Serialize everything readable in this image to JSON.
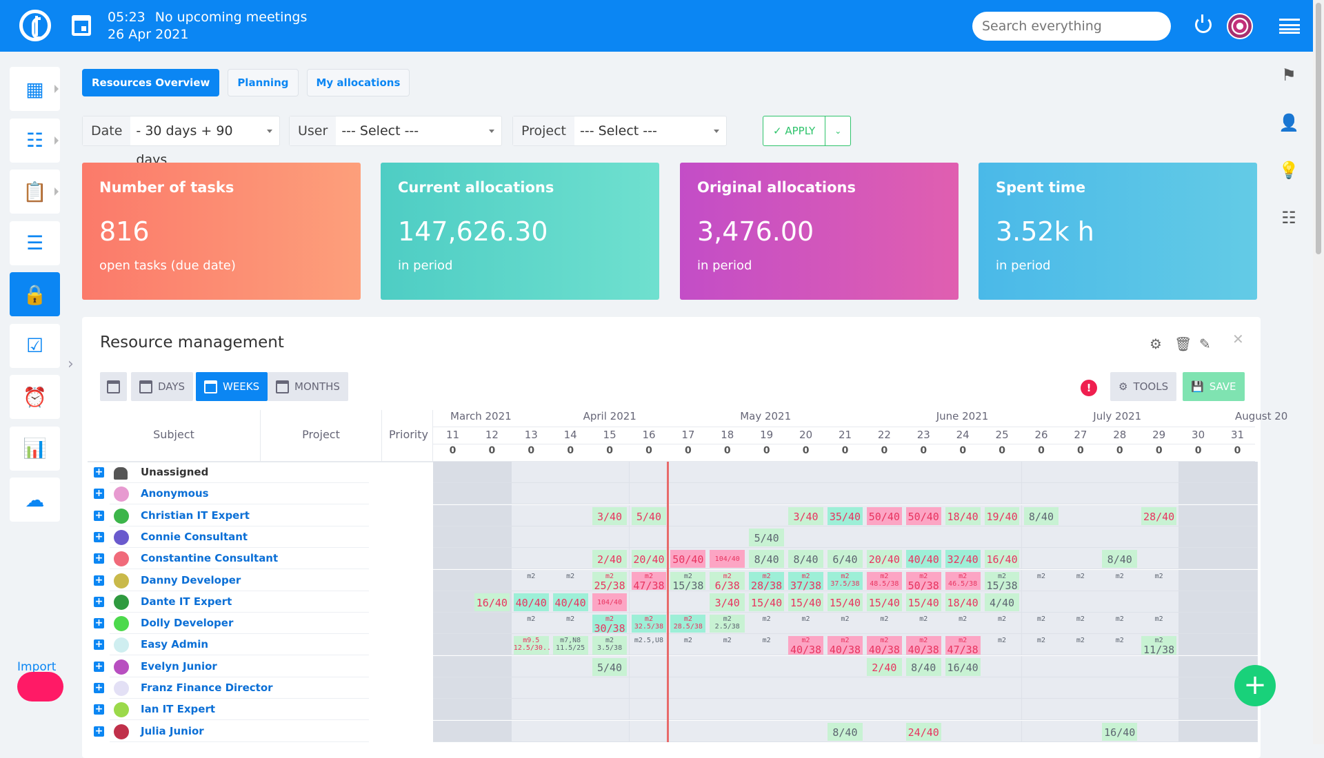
{
  "header": {
    "time": "05:23",
    "meetings": "No upcoming meetings",
    "date": "26 Apr 2021",
    "search_placeholder": "Search everything"
  },
  "sidebar": {
    "items": [
      {
        "icon": "dashboard-icon",
        "glyph": "▦"
      },
      {
        "icon": "tree-icon",
        "glyph": "☷"
      },
      {
        "icon": "clipboard-icon",
        "glyph": "📋"
      },
      {
        "icon": "checklist-icon",
        "glyph": "☰"
      },
      {
        "icon": "lock-icon",
        "glyph": "🔒",
        "active": true
      },
      {
        "icon": "task-check-icon",
        "glyph": "☑"
      },
      {
        "icon": "alarm-icon",
        "glyph": "⏰"
      },
      {
        "icon": "bar-chart-icon",
        "glyph": "📊"
      },
      {
        "icon": "cloud-icon",
        "glyph": "☁"
      }
    ],
    "import_label": "Import"
  },
  "right_sidebar": [
    {
      "icon": "flag-icon",
      "glyph": "⚑"
    },
    {
      "icon": "user-search-icon",
      "glyph": "👤"
    },
    {
      "icon": "lightbulb-icon",
      "glyph": "💡"
    },
    {
      "icon": "checklist-icon",
      "glyph": "☷"
    }
  ],
  "tabs": [
    {
      "label": "Resources Overview",
      "active": true
    },
    {
      "label": "Planning"
    },
    {
      "label": "My allocations"
    }
  ],
  "filters": {
    "date_label": "Date",
    "date_value": "- 30 days + 90 days",
    "user_label": "User",
    "user_value": "--- Select ---",
    "project_label": "Project",
    "project_value": "--- Select ---",
    "apply_label": "APPLY"
  },
  "cards": [
    {
      "title": "Number of tasks",
      "value": "816",
      "sub": "open tasks (due date)",
      "colors": [
        "#fb7a6a",
        "#fd9f7b"
      ]
    },
    {
      "title": "Current allocations",
      "value": "147,626.30",
      "sub": "in period",
      "colors": [
        "#4ecdc4",
        "#6fe0cf"
      ]
    },
    {
      "title": "Original allocations",
      "value": "3,476.00",
      "sub": "in period",
      "colors": [
        "#c34dc7",
        "#e05fb0"
      ]
    },
    {
      "title": "Spent time",
      "value": "3.52k h",
      "sub": "in period",
      "colors": [
        "#4ab9e8",
        "#63cbe6"
      ]
    }
  ],
  "panel": {
    "title": "Resource management",
    "days": "DAYS",
    "weeks": "WEEKS",
    "months": "MONTHS",
    "tools": "TOOLS",
    "save": "SAVE"
  },
  "table": {
    "headers": {
      "subject": "Subject",
      "project": "Project",
      "priority": "Priority"
    },
    "months": [
      {
        "label": "March 2021",
        "week": "11"
      },
      {
        "label": "April 2021",
        "week": "15"
      },
      {
        "label": "May 2021",
        "week": "19"
      },
      {
        "label": "June 2021",
        "week": "24"
      },
      {
        "label": "July 2021",
        "week": "28"
      },
      {
        "label": "August 20",
        "week": "31"
      }
    ],
    "weeks": [
      "11",
      "12",
      "13",
      "14",
      "15",
      "16",
      "17",
      "18",
      "19",
      "20",
      "21",
      "22",
      "23",
      "24",
      "25",
      "26",
      "27",
      "28",
      "29",
      "30",
      "31"
    ],
    "totals": [
      "0",
      "0",
      "0",
      "0",
      "0",
      "0",
      "0",
      "0",
      "0",
      "0",
      "0",
      "0",
      "0",
      "0",
      "0",
      "0",
      "0",
      "0",
      "0",
      "0",
      "0"
    ],
    "rows": [
      {
        "name": "Unassigned",
        "unassigned": true,
        "cells": []
      },
      {
        "name": "Anonymous",
        "avatar": "#e79ad0",
        "cells": []
      },
      {
        "name": "Christian IT Expert",
        "avatar": "#3cb54a",
        "cells": [
          {
            "w": "15",
            "v": "3/40",
            "s": "green",
            "r": 1
          },
          {
            "w": "16",
            "v": "5/40",
            "s": "green",
            "r": 1
          },
          {
            "w": "20",
            "v": "3/40",
            "s": "green",
            "r": 1
          },
          {
            "w": "21",
            "v": "35/40",
            "s": "teal",
            "r": 1
          },
          {
            "w": "22",
            "v": "50/40",
            "s": "pink",
            "r": 1
          },
          {
            "w": "23",
            "v": "50/40",
            "s": "pink",
            "r": 1
          },
          {
            "w": "24",
            "v": "18/40",
            "s": "green",
            "r": 1
          },
          {
            "w": "25",
            "v": "19/40",
            "s": "green",
            "r": 1
          },
          {
            "w": "26",
            "v": "8/40",
            "s": "green"
          },
          {
            "w": "29",
            "v": "28/40",
            "s": "green",
            "r": 1
          }
        ]
      },
      {
        "name": "Connie Consultant",
        "avatar": "#6a5acd",
        "cells": [
          {
            "w": "19",
            "v": "5/40",
            "s": "green"
          }
        ]
      },
      {
        "name": "Constantine Consultant",
        "avatar": "#f06a7a",
        "cells": [
          {
            "w": "15",
            "v": "2/40",
            "s": "green",
            "r": 1
          },
          {
            "w": "16",
            "v": "20/40",
            "s": "green",
            "r": 1
          },
          {
            "w": "17",
            "v": "50/40",
            "s": "pink",
            "r": 1
          },
          {
            "w": "18",
            "v": "104/40",
            "s": "pink",
            "r": 1,
            "small": 1
          },
          {
            "w": "19",
            "v": "8/40",
            "s": "green"
          },
          {
            "w": "20",
            "v": "8/40",
            "s": "green"
          },
          {
            "w": "21",
            "v": "6/40",
            "s": "green"
          },
          {
            "w": "22",
            "v": "20/40",
            "s": "green",
            "r": 1
          },
          {
            "w": "23",
            "v": "40/40",
            "s": "teal",
            "r": 1
          },
          {
            "w": "24",
            "v": "32/40",
            "s": "teal",
            "r": 1
          },
          {
            "w": "25",
            "v": "16/40",
            "s": "green",
            "r": 1
          },
          {
            "w": "28",
            "v": "8/40",
            "s": "green"
          }
        ]
      },
      {
        "name": "Danny Developer",
        "avatar": "#c9b94a",
        "cells": [
          {
            "w": "13",
            "sub": "m2"
          },
          {
            "w": "14",
            "sub": "m2"
          },
          {
            "w": "15",
            "sub": "m2",
            "v": "25/38",
            "s": "green",
            "r": 1
          },
          {
            "w": "16",
            "sub": "m2",
            "v": "47/38",
            "s": "pink",
            "r": 1
          },
          {
            "w": "17",
            "sub": "m2",
            "v": "15/38",
            "s": "green"
          },
          {
            "w": "18",
            "sub": "m2",
            "v": "6/38",
            "s": "green",
            "r": 1
          },
          {
            "w": "19",
            "sub": "m2",
            "v": "28/38",
            "s": "teal",
            "r": 1
          },
          {
            "w": "20",
            "sub": "m2",
            "v": "37/38",
            "s": "teal",
            "r": 1
          },
          {
            "w": "21",
            "sub": "m2",
            "v": "37.5/38",
            "s": "teal",
            "r": 1,
            "small": 1
          },
          {
            "w": "22",
            "sub": "m2",
            "v": "48.5/38",
            "s": "pink",
            "r": 1,
            "small": 1
          },
          {
            "w": "23",
            "sub": "m2",
            "v": "50/38",
            "s": "pink",
            "r": 1
          },
          {
            "w": "24",
            "sub": "m2",
            "v": "46.5/38",
            "s": "pink",
            "r": 1,
            "small": 1
          },
          {
            "w": "25",
            "sub": "m2",
            "v": "15/38",
            "s": "green"
          },
          {
            "w": "26",
            "sub": "m2"
          },
          {
            "w": "27",
            "sub": "m2"
          },
          {
            "w": "28",
            "sub": "m2"
          },
          {
            "w": "29",
            "sub": "m2"
          }
        ]
      },
      {
        "name": "Dante IT Expert",
        "avatar": "#2f9a3f",
        "cells": [
          {
            "w": "12",
            "v": "16/40",
            "s": "green",
            "r": 1
          },
          {
            "w": "13",
            "v": "40/40",
            "s": "teal",
            "r": 1
          },
          {
            "w": "14",
            "v": "40/40",
            "s": "teal",
            "r": 1
          },
          {
            "w": "15",
            "v": "104/40",
            "s": "pink",
            "r": 1,
            "small": 1
          },
          {
            "w": "18",
            "v": "3/40",
            "s": "green",
            "r": 1
          },
          {
            "w": "19",
            "v": "15/40",
            "s": "green",
            "r": 1
          },
          {
            "w": "20",
            "v": "15/40",
            "s": "green",
            "r": 1
          },
          {
            "w": "21",
            "v": "15/40",
            "s": "green",
            "r": 1
          },
          {
            "w": "22",
            "v": "15/40",
            "s": "green",
            "r": 1
          },
          {
            "w": "23",
            "v": "15/40",
            "s": "green",
            "r": 1
          },
          {
            "w": "24",
            "v": "18/40",
            "s": "green",
            "r": 1
          },
          {
            "w": "25",
            "v": "4/40",
            "s": "green"
          }
        ]
      },
      {
        "name": "Dolly Developer",
        "avatar": "#4cd94c",
        "cells": [
          {
            "w": "13",
            "sub": "m2"
          },
          {
            "w": "14",
            "sub": "m2"
          },
          {
            "w": "15",
            "sub": "m2",
            "v": "30/38",
            "s": "teal",
            "r": 1
          },
          {
            "w": "16",
            "sub": "m2",
            "v": "32.5/38",
            "s": "teal",
            "r": 1,
            "small": 1
          },
          {
            "w": "17",
            "sub": "m2",
            "v": "28.5/38",
            "s": "teal",
            "r": 1,
            "small": 1
          },
          {
            "w": "18",
            "sub": "m2",
            "v": "2.5/38",
            "s": "green",
            "small": 1
          },
          {
            "w": "19",
            "sub": "m2"
          },
          {
            "w": "20",
            "sub": "m2"
          },
          {
            "w": "21",
            "sub": "m2"
          },
          {
            "w": "22",
            "sub": "m2"
          },
          {
            "w": "23",
            "sub": "m2"
          },
          {
            "w": "24",
            "sub": "m2"
          },
          {
            "w": "25",
            "sub": "m2"
          },
          {
            "w": "26",
            "sub": "m2"
          },
          {
            "w": "27",
            "sub": "m2"
          },
          {
            "w": "28",
            "sub": "m2"
          },
          {
            "w": "29",
            "sub": "m2"
          }
        ]
      },
      {
        "name": "Easy Admin",
        "avatar": "#cfeef0",
        "cells": [
          {
            "w": "13",
            "sub": "m9.5",
            "v": "12.5/30..",
            "s": "green",
            "r": 1,
            "small": 1
          },
          {
            "w": "14",
            "sub": "m7,N8",
            "v": "11.5/25",
            "s": "green",
            "small": 1
          },
          {
            "w": "15",
            "sub": "m2",
            "v": "3.5/38",
            "s": "green",
            "small": 1
          },
          {
            "w": "16",
            "sub": "m2.5,U8"
          },
          {
            "w": "17",
            "sub": "m2"
          },
          {
            "w": "18",
            "sub": "m2"
          },
          {
            "w": "19",
            "sub": "m2"
          },
          {
            "w": "20",
            "sub": "m2",
            "v": "40/38",
            "s": "pink",
            "r": 1
          },
          {
            "w": "21",
            "sub": "m2",
            "v": "40/38",
            "s": "pink",
            "r": 1
          },
          {
            "w": "22",
            "sub": "m2",
            "v": "40/38",
            "s": "pink",
            "r": 1
          },
          {
            "w": "23",
            "sub": "m2",
            "v": "40/38",
            "s": "pink",
            "r": 1
          },
          {
            "w": "24",
            "sub": "m2",
            "v": "47/38",
            "s": "pink",
            "r": 1
          },
          {
            "w": "25",
            "sub": "m2"
          },
          {
            "w": "26",
            "sub": "m2"
          },
          {
            "w": "27",
            "sub": "m2"
          },
          {
            "w": "28",
            "sub": "m2"
          },
          {
            "w": "29",
            "sub": "m2",
            "v": "11/38",
            "s": "green"
          }
        ]
      },
      {
        "name": "Evelyn Junior",
        "avatar": "#b84fc0",
        "cells": [
          {
            "w": "15",
            "v": "5/40",
            "s": "green"
          },
          {
            "w": "22",
            "v": "2/40",
            "s": "green",
            "r": 1
          },
          {
            "w": "23",
            "v": "8/40",
            "s": "green"
          },
          {
            "w": "24",
            "v": "16/40",
            "s": "green"
          }
        ]
      },
      {
        "name": "Franz Finance Director",
        "avatar": "#e3e0f5",
        "cells": []
      },
      {
        "name": "Ian IT Expert",
        "avatar": "#9bd94a",
        "cells": []
      },
      {
        "name": "Julia Junior",
        "avatar": "#c0304a",
        "cells": [
          {
            "w": "21",
            "v": "8/40",
            "s": "green"
          },
          {
            "w": "23",
            "v": "24/40",
            "s": "green",
            "r": 1
          },
          {
            "w": "28",
            "v": "16/40",
            "s": "green"
          }
        ]
      }
    ]
  },
  "styles": {
    "green": "#c8f2d3",
    "teal": "#9defd7",
    "pink": "#fca5c4",
    "alert_text": "#e8335f",
    "normal_text": "#5c6470",
    "accent": "#0b86f3"
  }
}
